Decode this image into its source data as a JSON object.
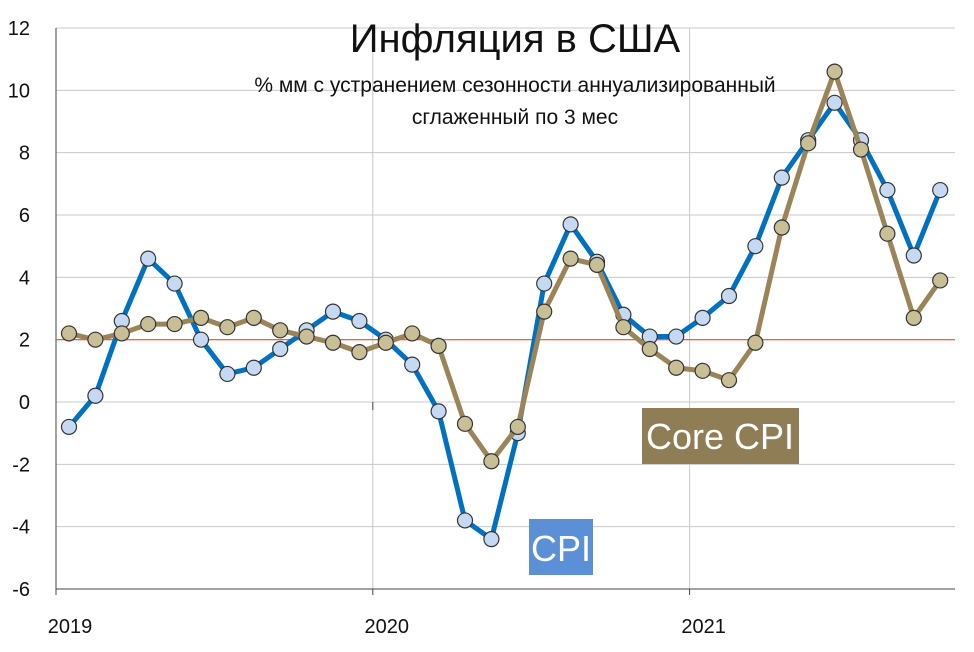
{
  "chart_data": {
    "type": "line",
    "title": "Инфляция в США",
    "subtitle_line1": "% мм с устранением сезонности аннуализированный",
    "subtitle_line2": "сглаженный по 3 мес",
    "xlabel": "",
    "ylabel": "",
    "ylim": [
      -6,
      12
    ],
    "yticks": [
      -6,
      -4,
      -2,
      0,
      2,
      4,
      6,
      8,
      10,
      12
    ],
    "year_labels": [
      "2019",
      "2020",
      "2021"
    ],
    "grid": true,
    "reference_line": {
      "y": 2,
      "color": "#e05050"
    },
    "months": [
      "2019-01",
      "2019-02",
      "2019-03",
      "2019-04",
      "2019-05",
      "2019-06",
      "2019-07",
      "2019-08",
      "2019-09",
      "2019-10",
      "2019-11",
      "2019-12",
      "2020-01",
      "2020-02",
      "2020-03",
      "2020-04",
      "2020-05",
      "2020-06",
      "2020-07",
      "2020-08",
      "2020-09",
      "2020-10",
      "2020-11",
      "2020-12",
      "2021-01",
      "2021-02",
      "2021-03",
      "2021-04",
      "2021-05",
      "2021-06",
      "2021-07",
      "2021-08",
      "2021-09",
      "2021-10"
    ],
    "series": [
      {
        "name": "CPI",
        "color": "#0070c0",
        "marker_fill": "#c5daf2",
        "label_bg": "#5b8fd6",
        "values": [
          -0.8,
          0.2,
          2.6,
          4.6,
          3.8,
          2.0,
          0.9,
          1.1,
          1.7,
          2.3,
          2.9,
          2.6,
          2.0,
          1.2,
          -0.3,
          -3.8,
          -4.4,
          -1.0,
          3.8,
          5.7,
          4.5,
          2.8,
          2.1,
          2.1,
          2.7,
          3.4,
          5.0,
          7.2,
          8.4,
          9.6,
          8.4,
          6.8,
          4.7,
          6.8
        ]
      },
      {
        "name": "Core CPI",
        "color": "#9a8458",
        "marker_fill": "#c8bf96",
        "label_bg": "#8f7d55",
        "values": [
          2.2,
          2.0,
          2.2,
          2.5,
          2.5,
          2.7,
          2.4,
          2.7,
          2.3,
          2.1,
          1.9,
          1.6,
          1.9,
          2.2,
          1.8,
          -0.7,
          -1.9,
          -0.8,
          2.9,
          4.6,
          4.4,
          2.4,
          1.7,
          1.1,
          1.0,
          0.7,
          1.9,
          5.6,
          8.3,
          10.6,
          8.1,
          5.4,
          2.7,
          3.9
        ]
      }
    ]
  }
}
